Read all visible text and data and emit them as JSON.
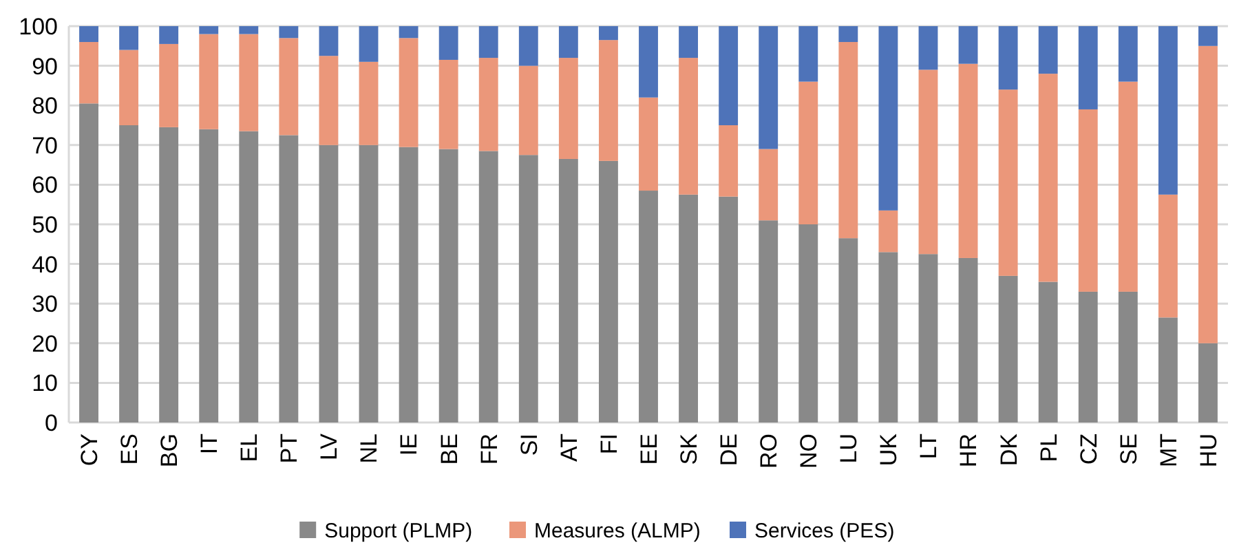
{
  "chart_data": {
    "type": "bar",
    "stacked": true,
    "categories": [
      "CY",
      "ES",
      "BG",
      "IT",
      "EL",
      "PT",
      "LV",
      "NL",
      "IE",
      "BE",
      "FR",
      "SI",
      "AT",
      "FI",
      "EE",
      "SK",
      "DE",
      "RO",
      "NO",
      "LU",
      "UK",
      "LT",
      "HR",
      "DK",
      "PL",
      "CZ",
      "SE",
      "MT",
      "HU"
    ],
    "series": [
      {
        "name": "Support (PLMP)",
        "color": "#898989",
        "values": [
          80.5,
          75,
          74.5,
          74,
          73.5,
          72.5,
          70,
          70,
          69.5,
          69,
          68.5,
          67.5,
          66.5,
          66,
          58.5,
          57.5,
          57,
          51,
          50,
          46.5,
          43,
          42.5,
          41.5,
          37,
          35.5,
          33,
          33,
          26.5,
          20
        ]
      },
      {
        "name": "Measures (ALMP)",
        "color": "#eb977a",
        "values": [
          15.5,
          19,
          21,
          24,
          24.5,
          24.5,
          22.5,
          21,
          27.5,
          22.5,
          23.5,
          22.5,
          25.5,
          30.5,
          23.5,
          34.5,
          18,
          18,
          36,
          49.5,
          10.5,
          46.5,
          49,
          47,
          52.5,
          46,
          53,
          31,
          75
        ]
      },
      {
        "name": "Services (PES)",
        "color": "#4e73b9",
        "values": [
          4,
          6,
          4.5,
          2,
          2,
          3,
          7.5,
          9,
          3,
          8.5,
          8,
          10,
          8,
          3.5,
          18,
          8,
          25,
          31,
          14,
          4,
          46.5,
          11,
          9.5,
          16,
          12,
          21,
          14,
          42.5,
          5
        ]
      }
    ],
    "ylim": [
      0,
      100
    ],
    "yticks": [
      0,
      10,
      20,
      30,
      40,
      50,
      60,
      70,
      80,
      90,
      100
    ],
    "grid": "y",
    "legend": "bottom"
  }
}
